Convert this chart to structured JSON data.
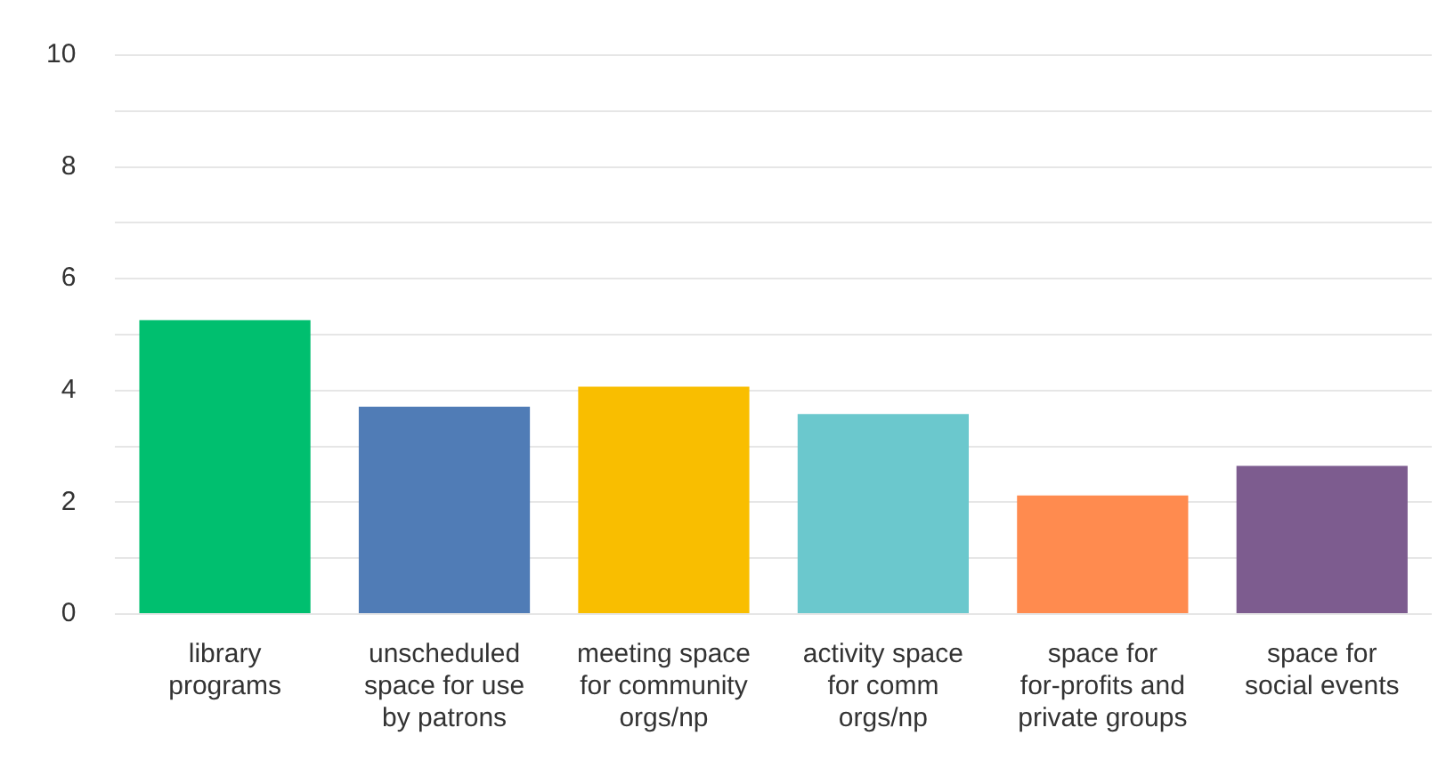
{
  "chart_data": {
    "type": "bar",
    "categories": [
      "library programs",
      "unscheduled space for use by patrons",
      "meeting space for community orgs/np",
      "activity space for comm orgs/np",
      "space for for-profits and private groups",
      "space for social events"
    ],
    "values": [
      5.26,
      3.71,
      4.07,
      3.58,
      2.12,
      2.65
    ],
    "colors": [
      "#00bf6f",
      "#507cb6",
      "#f9be00",
      "#6bc8cd",
      "#ff8b4f",
      "#7d5c8f"
    ],
    "ylim": [
      0,
      10
    ],
    "yticks": [
      0,
      {
        "value": 1,
        "label": null
      },
      2,
      {
        "value": 3,
        "label": null
      },
      4,
      {
        "value": 5,
        "label": null
      },
      6,
      {
        "value": 7,
        "label": null
      },
      8,
      {
        "value": 9,
        "label": null
      },
      10
    ],
    "grid": "y",
    "legend": false
  }
}
